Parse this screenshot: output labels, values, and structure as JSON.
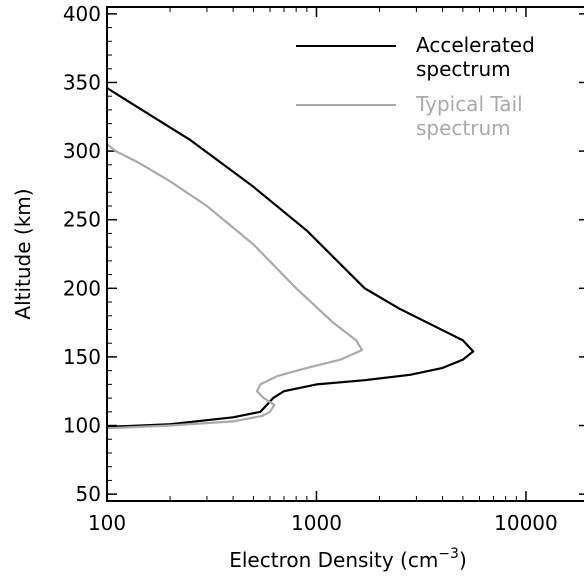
{
  "chart_data": {
    "type": "line",
    "xlabel": "Electron Density (cm",
    "xlabel_sup": "−3",
    "xlabel_close": ")",
    "ylabel": "Altitude (km)",
    "xscale": "log",
    "xlim": [
      100,
      20000
    ],
    "ylim": [
      45,
      405
    ],
    "x_ticks": [
      {
        "value": 100,
        "label": "100"
      },
      {
        "value": 1000,
        "label": "1000"
      },
      {
        "value": 10000,
        "label": "10000"
      }
    ],
    "y_ticks": [
      {
        "value": 50,
        "label": "50"
      },
      {
        "value": 100,
        "label": "100"
      },
      {
        "value": 150,
        "label": "150"
      },
      {
        "value": 200,
        "label": "200"
      },
      {
        "value": 250,
        "label": "250"
      },
      {
        "value": 300,
        "label": "300"
      },
      {
        "value": 350,
        "label": "350"
      },
      {
        "value": 400,
        "label": "400"
      }
    ],
    "grid": false,
    "legend_position": "top-right",
    "series": [
      {
        "name_lines": [
          "Accelerated",
          "spectrum"
        ],
        "color": "#000000",
        "points": [
          [
            100,
            99
          ],
          [
            200,
            101
          ],
          [
            400,
            106
          ],
          [
            540,
            110
          ],
          [
            580,
            115
          ],
          [
            620,
            120
          ],
          [
            700,
            125
          ],
          [
            1000,
            130
          ],
          [
            1700,
            133
          ],
          [
            2800,
            137
          ],
          [
            4000,
            142
          ],
          [
            5000,
            148
          ],
          [
            5600,
            154
          ],
          [
            5000,
            162
          ],
          [
            3700,
            172
          ],
          [
            2500,
            185
          ],
          [
            1700,
            200
          ],
          [
            900,
            242
          ],
          [
            500,
            274
          ],
          [
            250,
            308
          ],
          [
            140,
            332
          ],
          [
            100,
            346
          ]
        ]
      },
      {
        "name_lines": [
          "Typical Tail",
          "spectrum"
        ],
        "color": "#aaaaaa",
        "points": [
          [
            100,
            98
          ],
          [
            200,
            100
          ],
          [
            400,
            103
          ],
          [
            550,
            107
          ],
          [
            600,
            110
          ],
          [
            630,
            115
          ],
          [
            560,
            120
          ],
          [
            520,
            125
          ],
          [
            540,
            130
          ],
          [
            650,
            136
          ],
          [
            900,
            142
          ],
          [
            1300,
            148
          ],
          [
            1650,
            155
          ],
          [
            1550,
            162
          ],
          [
            1200,
            175
          ],
          [
            800,
            200
          ],
          [
            500,
            232
          ],
          [
            300,
            260
          ],
          [
            200,
            278
          ],
          [
            140,
            292
          ],
          [
            110,
            300
          ],
          [
            100,
            305
          ]
        ]
      }
    ]
  }
}
